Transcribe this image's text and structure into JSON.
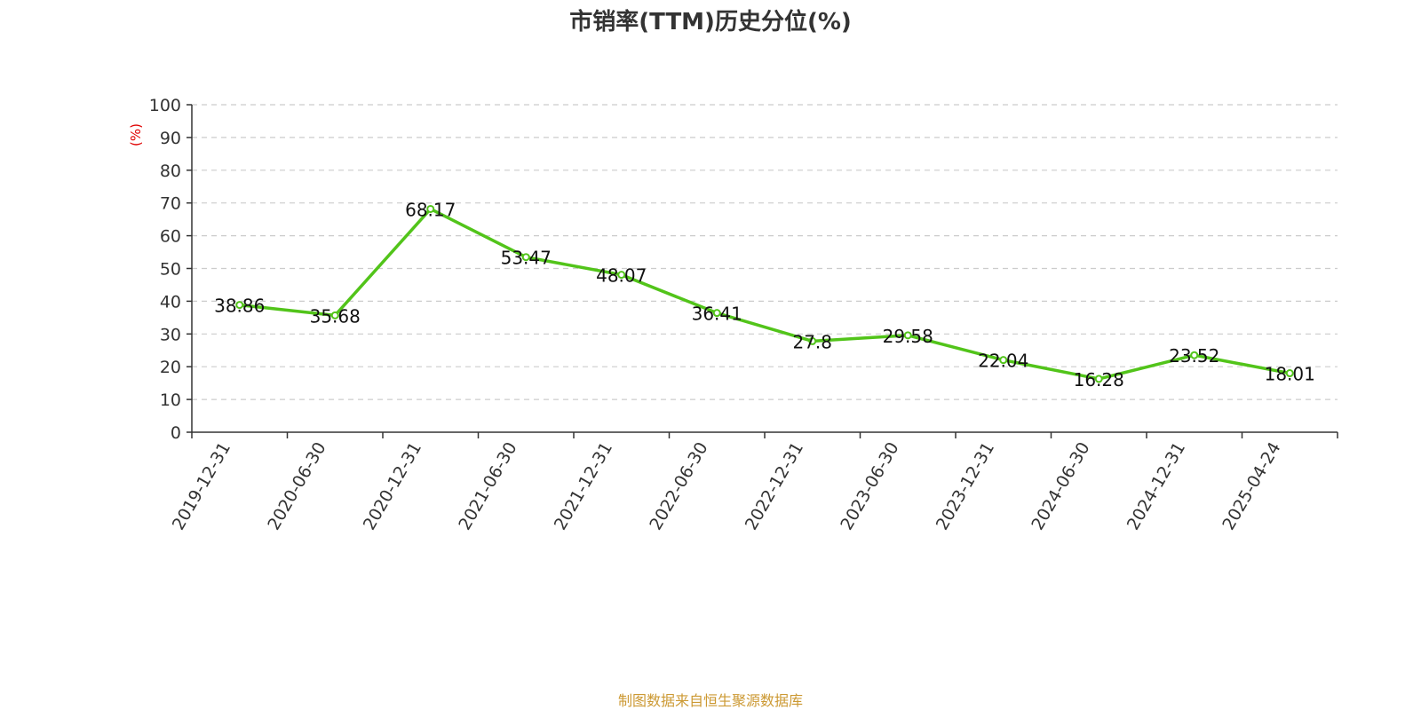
{
  "chart_data": {
    "type": "line",
    "title": "市销率(TTM)历史分位(%)",
    "ylabel": "(%)",
    "xlabel": "",
    "ylim": [
      0,
      100
    ],
    "y_ticks": [
      "0",
      "10",
      "20",
      "30",
      "40",
      "50",
      "60",
      "70",
      "80",
      "90",
      "100"
    ],
    "grid": "horizontal dashed",
    "categories": [
      "2019-12-31",
      "2020-06-30",
      "2020-12-31",
      "2021-06-30",
      "2021-12-31",
      "2022-06-30",
      "2022-12-31",
      "2023-06-30",
      "2023-12-31",
      "2024-06-30",
      "2024-12-31",
      "2025-04-24"
    ],
    "values": [
      38.86,
      35.68,
      68.17,
      53.47,
      48.07,
      36.41,
      27.8,
      29.58,
      22.04,
      16.28,
      23.52,
      18.01
    ],
    "value_labels": [
      "38.86",
      "35.68",
      "68.17",
      "53.47",
      "48.07",
      "36.41",
      "27.8",
      "29.58",
      "22.04",
      "16.28",
      "23.52",
      "18.01"
    ],
    "line_color": "#52c41a",
    "ylabel_color": "#e00000"
  },
  "source": "制图数据来自恒生聚源数据库"
}
